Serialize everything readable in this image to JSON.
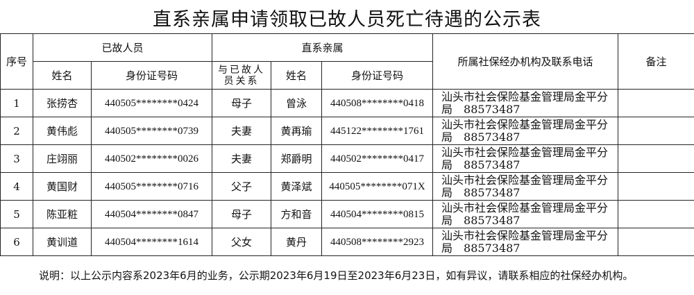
{
  "title": "直系亲属申请领取已故人员死亡待遇的公示表",
  "headers": {
    "seq": "序号",
    "deceased": "已故人员",
    "relatives": "直系亲属",
    "org": "所属社保经办机构及联系电话",
    "remark": "备注",
    "name": "姓名",
    "id": "身份证号码",
    "relation": "与已故人员关系",
    "rel_name": "姓名",
    "rel_id": "身份证号码"
  },
  "rows": [
    {
      "seq": "1",
      "name": "张捞杏",
      "id": "440505********0424",
      "relation": "母子",
      "rel_name": "曾泳",
      "rel_id": "440508********0418",
      "org": "汕头市社会保险基金管理局金平分局　88573487",
      "remark": ""
    },
    {
      "seq": "2",
      "name": "黄伟彪",
      "id": "440505********0739",
      "relation": "夫妻",
      "rel_name": "黄再瑜",
      "rel_id": "445122********1761",
      "org": "汕头市社会保险基金管理局金平分局　88573487",
      "remark": ""
    },
    {
      "seq": "3",
      "name": "庄翊丽",
      "id": "440502********0026",
      "relation": "夫妻",
      "rel_name": "郑爵明",
      "rel_id": "440502********0417",
      "org": "汕头市社会保险基金管理局金平分局　88573487",
      "remark": ""
    },
    {
      "seq": "4",
      "name": "黄国财",
      "id": "440505********0716",
      "relation": "父子",
      "rel_name": "黄泽斌",
      "rel_id": "440505********071X",
      "org": "汕头市社会保险基金管理局金平分局　88573487",
      "remark": ""
    },
    {
      "seq": "5",
      "name": "陈亚粧",
      "id": "440504********0847",
      "relation": "母子",
      "rel_name": "方和音",
      "rel_id": "440504********0815",
      "org": "汕头市社会保险基金管理局金平分局　88573487",
      "remark": ""
    },
    {
      "seq": "6",
      "name": "黄训道",
      "id": "440504********1614",
      "relation": "父女",
      "rel_name": "黄丹",
      "rel_id": "440508********2923",
      "org": "汕头市社会保险基金管理局金平分局　88573487",
      "remark": ""
    }
  ],
  "note": "说明：以上公示内容系2023年6月的业务，公示期2023年6月19日至2023年6月23日，如有异议，请联系相应的社保经办机构。"
}
